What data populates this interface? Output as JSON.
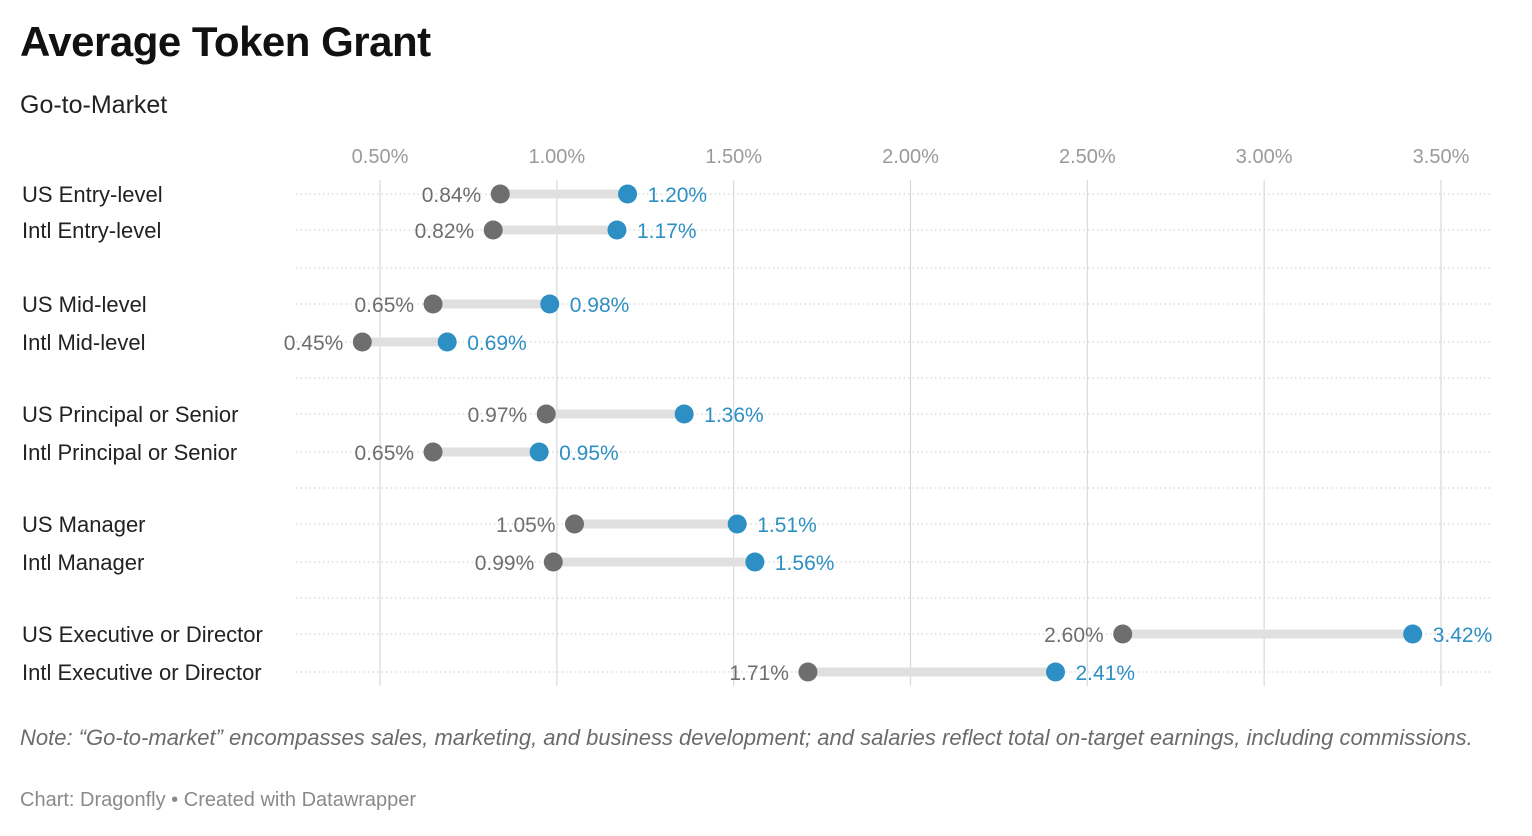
{
  "title": "Average Token Grant",
  "subtitle": "Go-to-Market",
  "note": "Note: “Go-to-market” encompasses sales, marketing, and business development; and salaries reflect total on-target earnings, including commissions.",
  "footer": {
    "source": "Chart: Dragonfly",
    "separator": " • ",
    "credit": "Created with Datawrapper"
  },
  "colors": {
    "start_dot": "#6e6e6e",
    "end_dot": "#2d8fc4",
    "end_label": "#2d8fc4",
    "start_label": "#6e6e6e",
    "range_bar": "#e0e0e0",
    "gridline": "#d9d9d9",
    "tick_label": "#9a9a9a",
    "row_label": "#222222"
  },
  "chart_data": {
    "type": "range-dot",
    "title": "Average Token Grant",
    "subtitle": "Go-to-Market",
    "xlabel": "",
    "ylabel": "",
    "xlim": [
      0.3,
      3.65
    ],
    "ticks": [
      0.5,
      1.0,
      1.5,
      2.0,
      2.5,
      3.0,
      3.5
    ],
    "tick_labels": [
      "0.50%",
      "1.00%",
      "1.50%",
      "2.00%",
      "2.50%",
      "3.00%",
      "3.50%"
    ],
    "grid": true,
    "series": [
      {
        "name": "start",
        "color": "#6e6e6e"
      },
      {
        "name": "end",
        "color": "#2d8fc4"
      }
    ],
    "rows": [
      {
        "label": "US Entry-level",
        "start": 0.84,
        "end": 1.2,
        "start_label": "0.84%",
        "end_label": "1.20%",
        "group": 0
      },
      {
        "label": "Intl Entry-level",
        "start": 0.82,
        "end": 1.17,
        "start_label": "0.82%",
        "end_label": "1.17%",
        "group": 0
      },
      {
        "label": "US Mid-level",
        "start": 0.65,
        "end": 0.98,
        "start_label": "0.65%",
        "end_label": "0.98%",
        "group": 1
      },
      {
        "label": "Intl Mid-level",
        "start": 0.45,
        "end": 0.69,
        "start_label": "0.45%",
        "end_label": "0.69%",
        "group": 1
      },
      {
        "label": "US Principal or Senior",
        "start": 0.97,
        "end": 1.36,
        "start_label": "0.97%",
        "end_label": "1.36%",
        "group": 2
      },
      {
        "label": "Intl Principal or Senior",
        "start": 0.65,
        "end": 0.95,
        "start_label": "0.65%",
        "end_label": "0.95%",
        "group": 2
      },
      {
        "label": "US Manager",
        "start": 1.05,
        "end": 1.51,
        "start_label": "1.05%",
        "end_label": "1.51%",
        "group": 3
      },
      {
        "label": "Intl Manager",
        "start": 0.99,
        "end": 1.56,
        "start_label": "0.99%",
        "end_label": "1.56%",
        "group": 3
      },
      {
        "label": "US Executive or Director",
        "start": 2.6,
        "end": 3.42,
        "start_label": "2.60%",
        "end_label": "3.42%",
        "group": 4
      },
      {
        "label": "Intl Executive or Director",
        "start": 1.71,
        "end": 2.41,
        "start_label": "1.71%",
        "end_label": "2.41%",
        "group": 4
      }
    ]
  }
}
